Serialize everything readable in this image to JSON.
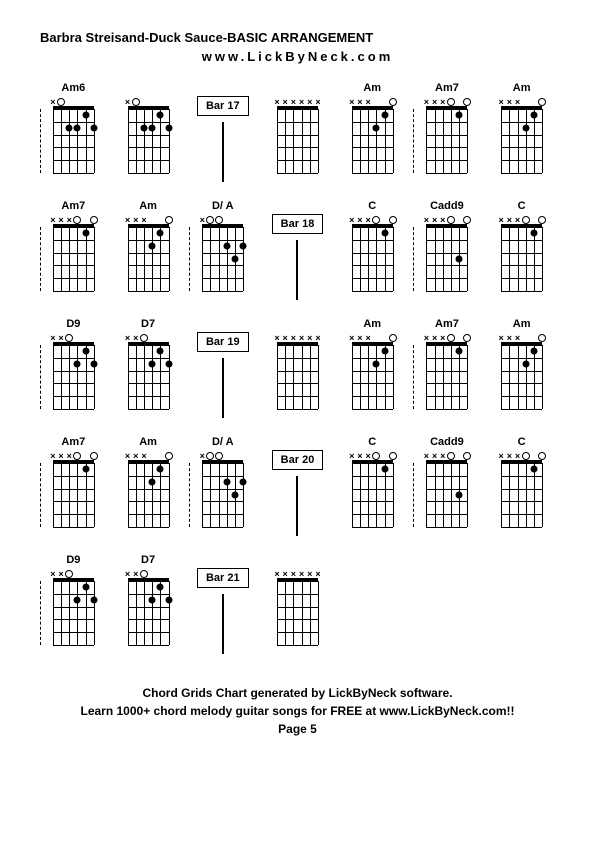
{
  "title": "Barbra Streisand-Duck Sauce-BASIC ARRANGEMENT",
  "subtitle": "www.LickByNeck.com",
  "footer_line1": "Chord Grids Chart generated by LickByNeck software.",
  "footer_line2": "Learn 1000+ chord melody guitar songs for FREE at www.LickByNeck.com!!",
  "page_label": "Page 5",
  "diagram": {
    "num_strings": 6,
    "num_frets": 5,
    "string_positions_pct": [
      0,
      20,
      40,
      60,
      80,
      100
    ],
    "fret_positions_pct": [
      0,
      20,
      40,
      60,
      80,
      100
    ],
    "dot_color": "#000000",
    "line_color": "#000000"
  },
  "chords": {
    "Am6": {
      "markers": [
        {
          "s": 0,
          "t": "x"
        },
        {
          "s": 1,
          "t": "o"
        },
        {
          "s": 2,
          "f": 2
        },
        {
          "s": 3,
          "f": 2
        },
        {
          "s": 4,
          "f": 1
        },
        {
          "s": 5,
          "f": 2
        }
      ]
    },
    "Am": {
      "markers": [
        {
          "s": 0,
          "t": "x"
        },
        {
          "s": 1,
          "t": "o"
        },
        {
          "s": 2,
          "f": 2
        },
        {
          "s": 3,
          "f": 2
        },
        {
          "s": 4,
          "f": 1
        },
        {
          "s": 5,
          "t": "o"
        }
      ]
    },
    "Am_noE": {
      "markers": [
        {
          "s": 0,
          "t": "x"
        },
        {
          "s": 1,
          "t": "x"
        },
        {
          "s": 2,
          "t": "x"
        },
        {
          "s": 3,
          "f": 2
        },
        {
          "s": 4,
          "f": 1
        },
        {
          "s": 5,
          "t": "o"
        }
      ]
    },
    "Am7": {
      "markers": [
        {
          "s": 0,
          "t": "x"
        },
        {
          "s": 1,
          "t": "x"
        },
        {
          "s": 2,
          "t": "x"
        },
        {
          "s": 3,
          "t": "o"
        },
        {
          "s": 4,
          "f": 1
        },
        {
          "s": 5,
          "t": "o"
        }
      ]
    },
    "D/A": {
      "markers": [
        {
          "s": 0,
          "t": "x"
        },
        {
          "s": 1,
          "t": "o"
        },
        {
          "s": 2,
          "t": "o"
        },
        {
          "s": 3,
          "f": 2
        },
        {
          "s": 4,
          "f": 3
        },
        {
          "s": 5,
          "f": 2
        }
      ]
    },
    "C": {
      "markers": [
        {
          "s": 0,
          "t": "x"
        },
        {
          "s": 1,
          "t": "x"
        },
        {
          "s": 2,
          "t": "x"
        },
        {
          "s": 3,
          "t": "o"
        },
        {
          "s": 4,
          "f": 1
        },
        {
          "s": 5,
          "t": "o"
        }
      ]
    },
    "Cadd9": {
      "markers": [
        {
          "s": 0,
          "t": "x"
        },
        {
          "s": 1,
          "t": "x"
        },
        {
          "s": 2,
          "t": "x"
        },
        {
          "s": 3,
          "t": "o"
        },
        {
          "s": 4,
          "f": 3
        },
        {
          "s": 5,
          "t": "o"
        }
      ]
    },
    "D9": {
      "markers": [
        {
          "s": 0,
          "t": "x"
        },
        {
          "s": 1,
          "t": "x"
        },
        {
          "s": 2,
          "t": "o"
        },
        {
          "s": 3,
          "f": 2
        },
        {
          "s": 4,
          "f": 1
        },
        {
          "s": 5,
          "f": 2
        }
      ]
    },
    "D7": {
      "markers": [
        {
          "s": 0,
          "t": "x"
        },
        {
          "s": 1,
          "t": "x"
        },
        {
          "s": 2,
          "t": "o"
        },
        {
          "s": 3,
          "f": 2
        },
        {
          "s": 4,
          "f": 1
        },
        {
          "s": 5,
          "f": 2
        }
      ]
    },
    "blank": {
      "markers": [
        {
          "s": 0,
          "t": "x"
        },
        {
          "s": 1,
          "t": "x"
        },
        {
          "s": 2,
          "t": "x"
        },
        {
          "s": 3,
          "t": "x"
        },
        {
          "s": 4,
          "t": "x"
        },
        {
          "s": 5,
          "t": "x"
        }
      ]
    }
  },
  "rows": [
    [
      {
        "type": "chord",
        "label": "Am6",
        "ref": "Am6",
        "divL": true
      },
      {
        "type": "chord",
        "label": "",
        "ref": "Am6"
      },
      {
        "type": "bar",
        "label": "Bar 17"
      },
      {
        "type": "chord",
        "label": "",
        "ref": "blank"
      },
      {
        "type": "chord",
        "label": "Am",
        "ref": "Am_noE"
      },
      {
        "type": "chord",
        "label": "Am7",
        "ref": "Am7",
        "divL": true
      },
      {
        "type": "chord",
        "label": "Am",
        "ref": "Am_noE"
      }
    ],
    [
      {
        "type": "chord",
        "label": "Am7",
        "ref": "Am7",
        "divL": true
      },
      {
        "type": "chord",
        "label": "Am",
        "ref": "Am_noE"
      },
      {
        "type": "chord",
        "label": "D/ A",
        "ref": "D/A",
        "divL": true
      },
      {
        "type": "bar",
        "label": "Bar 18"
      },
      {
        "type": "chord",
        "label": "C",
        "ref": "C"
      },
      {
        "type": "chord",
        "label": "Cadd9",
        "ref": "Cadd9",
        "divL": true
      },
      {
        "type": "chord",
        "label": "C",
        "ref": "C"
      }
    ],
    [
      {
        "type": "chord",
        "label": "D9",
        "ref": "D9",
        "divL": true
      },
      {
        "type": "chord",
        "label": "D7",
        "ref": "D7"
      },
      {
        "type": "bar",
        "label": "Bar 19"
      },
      {
        "type": "chord",
        "label": "",
        "ref": "blank"
      },
      {
        "type": "chord",
        "label": "Am",
        "ref": "Am_noE"
      },
      {
        "type": "chord",
        "label": "Am7",
        "ref": "Am7",
        "divL": true
      },
      {
        "type": "chord",
        "label": "Am",
        "ref": "Am_noE"
      }
    ],
    [
      {
        "type": "chord",
        "label": "Am7",
        "ref": "Am7",
        "divL": true
      },
      {
        "type": "chord",
        "label": "Am",
        "ref": "Am_noE"
      },
      {
        "type": "chord",
        "label": "D/ A",
        "ref": "D/A",
        "divL": true
      },
      {
        "type": "bar",
        "label": "Bar 20"
      },
      {
        "type": "chord",
        "label": "C",
        "ref": "C"
      },
      {
        "type": "chord",
        "label": "Cadd9",
        "ref": "Cadd9",
        "divL": true
      },
      {
        "type": "chord",
        "label": "C",
        "ref": "C"
      }
    ],
    [
      {
        "type": "chord",
        "label": "D9",
        "ref": "D9",
        "divL": true
      },
      {
        "type": "chord",
        "label": "D7",
        "ref": "D7"
      },
      {
        "type": "bar",
        "label": "Bar 21"
      },
      {
        "type": "chord",
        "label": "",
        "ref": "blank"
      },
      {
        "type": "empty"
      },
      {
        "type": "empty"
      },
      {
        "type": "empty"
      }
    ]
  ]
}
